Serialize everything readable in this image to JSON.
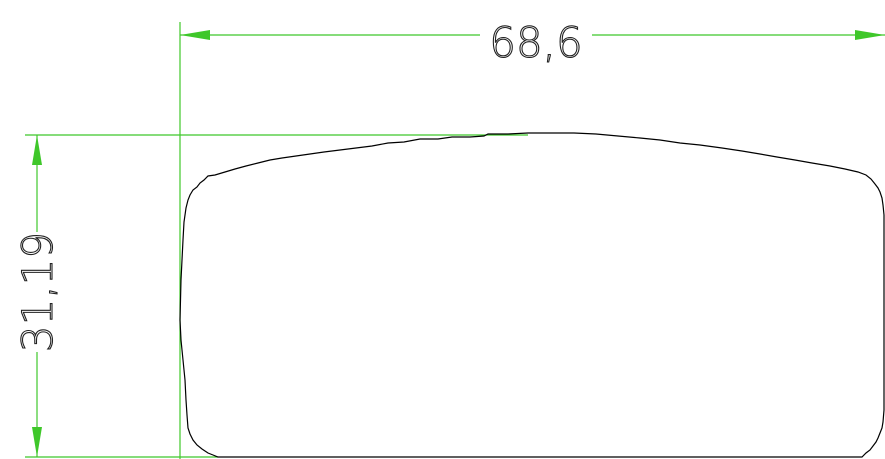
{
  "drawing": {
    "dimensions": {
      "width_label": "68,6",
      "height_label": "31,19"
    },
    "colors": {
      "dimension_line": "#3fc72a",
      "outline": "#000000",
      "text": "#222222",
      "background": "#ffffff"
    }
  }
}
